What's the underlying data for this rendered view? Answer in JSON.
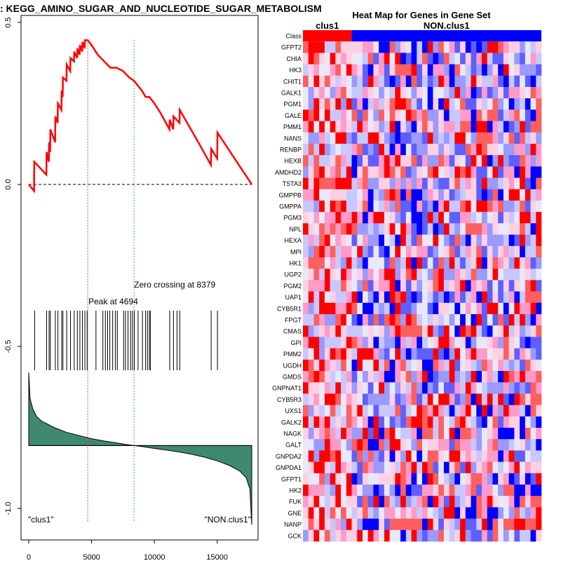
{
  "chart_data": [
    {
      "type": "line",
      "title": ": KEGG_AMINO_SUGAR_AND_NUCLEOTIDE_SUGAR_METABOLISM",
      "xlabel": "",
      "ylabel": "",
      "xlim": [
        0,
        17750
      ],
      "ylim": [
        -1.08,
        0.5
      ],
      "x_ticks": [
        0,
        5000,
        10000,
        15000
      ],
      "x_tick_labels": [
        "0",
        "5000",
        "10000",
        "15000"
      ],
      "y_ticks": [
        0.5,
        0.0,
        -0.5,
        -1.0
      ],
      "y_tick_labels": [
        "0.5",
        "0.0",
        "-0.5",
        "-1.0"
      ],
      "es_curve": {
        "x": [
          0,
          420,
          440,
          1400,
          1420,
          1600,
          1620,
          1700,
          1720,
          2100,
          2120,
          2300,
          2320,
          2600,
          2620,
          2700,
          2720,
          3000,
          3020,
          3300,
          3320,
          3600,
          3620,
          3850,
          3870,
          4050,
          4070,
          4250,
          4270,
          4450,
          4470,
          4694,
          5000,
          5500,
          6000,
          6500,
          7000,
          7500,
          8000,
          8379,
          9000,
          9300,
          9600,
          10000,
          10500,
          11200,
          11220,
          11500,
          11520,
          12000,
          12020,
          13500,
          14500,
          14520,
          15000,
          15020,
          17750
        ],
        "y": [
          0.0,
          -0.02,
          0.07,
          0.03,
          0.1,
          0.07,
          0.13,
          0.1,
          0.17,
          0.13,
          0.21,
          0.19,
          0.25,
          0.23,
          0.29,
          0.27,
          0.33,
          0.32,
          0.37,
          0.35,
          0.39,
          0.38,
          0.41,
          0.39,
          0.42,
          0.4,
          0.43,
          0.41,
          0.44,
          0.42,
          0.445,
          0.445,
          0.43,
          0.4,
          0.38,
          0.36,
          0.36,
          0.35,
          0.33,
          0.32,
          0.29,
          0.27,
          0.27,
          0.25,
          0.22,
          0.17,
          0.2,
          0.17,
          0.21,
          0.19,
          0.23,
          0.13,
          0.06,
          0.11,
          0.08,
          0.16,
          0.0
        ]
      },
      "hits": [
        470,
        1420,
        1620,
        1720,
        2120,
        2320,
        2620,
        2720,
        3020,
        3320,
        3620,
        3870,
        4070,
        4270,
        4470,
        4650,
        5350,
        5900,
        6100,
        6280,
        6450,
        6680,
        6900,
        7050,
        7550,
        7700,
        7900,
        8100,
        8250,
        8400,
        8700,
        9050,
        9300,
        9450,
        9600,
        9680,
        11220,
        11520,
        11800,
        12020,
        14520,
        15020
      ],
      "peak": {
        "x": 4694,
        "label": "Peak at 4694"
      },
      "zero_crossing": {
        "x": 8379,
        "label": "Zero crossing at 8379"
      },
      "ranked_metric": {
        "x": [
          0,
          100,
          300,
          600,
          1000,
          1500,
          2000,
          3000,
          4000,
          5000,
          6000,
          7000,
          8000,
          8379,
          9000,
          10000,
          11000,
          12000,
          13000,
          14000,
          15000,
          16000,
          16800,
          17300,
          17600,
          17750
        ],
        "y": [
          -0.58,
          -0.66,
          -0.69,
          -0.715,
          -0.73,
          -0.74,
          -0.75,
          -0.765,
          -0.775,
          -0.785,
          -0.792,
          -0.798,
          -0.804,
          -0.806,
          -0.809,
          -0.815,
          -0.82,
          -0.826,
          -0.833,
          -0.842,
          -0.853,
          -0.868,
          -0.885,
          -0.905,
          -0.94,
          -1.05
        ]
      },
      "baseline": -0.806,
      "left_label": "\"clus1\"",
      "right_label": "\"NON.clus1\"",
      "colors": {
        "es": "#ff0000",
        "peak": "#d04040",
        "zero": "#40c040",
        "metric_fill": "#3f8a6f"
      }
    },
    {
      "type": "heatmap",
      "title": "Heat Map for Genes in Gene Set",
      "class_row_label": "Class",
      "classes": [
        {
          "name": "clus1",
          "count": 9,
          "color": "#ff0000"
        },
        {
          "name": "NON.clus1",
          "count": 35,
          "color": "#0000ff"
        }
      ],
      "genes": [
        "GFPT2",
        "CHIA",
        "HK3",
        "CHIT1",
        "GALK1",
        "PGM1",
        "GALE",
        "PMM1",
        "NANS",
        "RENBP",
        "HEXB",
        "AMDHD2",
        "TSTA3",
        "GMPPB",
        "GMPPA",
        "PGM3",
        "NPL",
        "HEXA",
        "MPI",
        "HK1",
        "UGP2",
        "PGM2",
        "UAP1",
        "CYB5R1",
        "FPGT",
        "CMAS",
        "GPI",
        "PMM2",
        "UGDH",
        "GMDS",
        "GNPNAT1",
        "CYB5R3",
        "UXS1",
        "GALK2",
        "NAGK",
        "GALT",
        "GNPDA2",
        "GNPDA1",
        "GFPT1",
        "HK2",
        "FUK",
        "GNE",
        "NANP",
        "GCK"
      ],
      "columns": 44,
      "colors": {
        "high": "#ff0000",
        "low": "#0000ff",
        "mid": "#ffffff"
      }
    }
  ]
}
